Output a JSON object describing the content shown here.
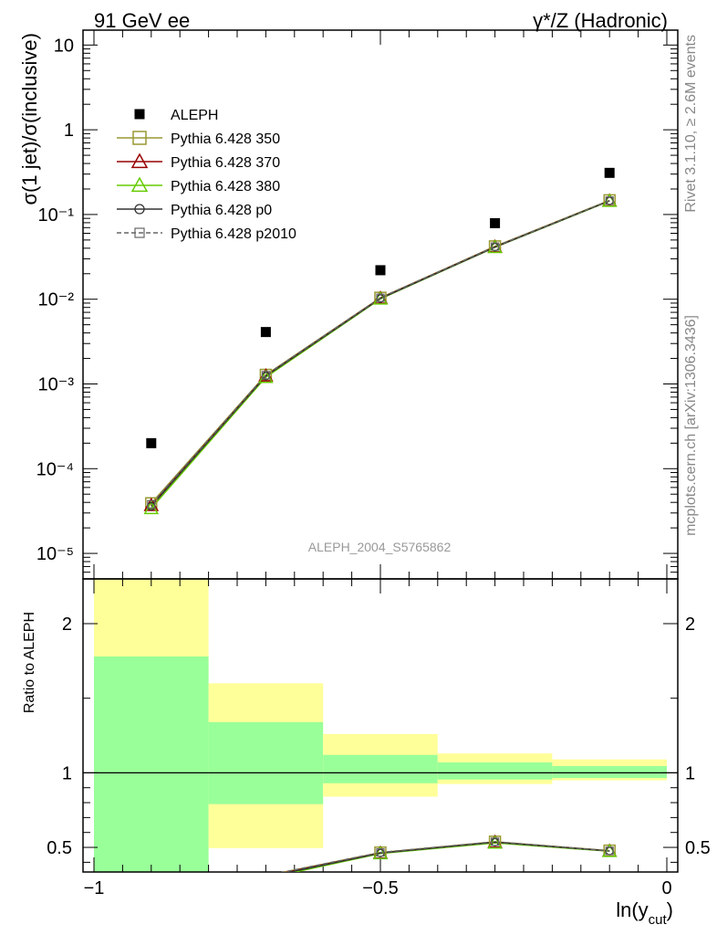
{
  "header": {
    "left_title": "91 GeV ee",
    "right_title": "γ*/Z (Hadronic)"
  },
  "side_text": {
    "rivet": "Rivet 3.1.10, ≥ 2.6M events",
    "mcplots": "mcplots.cern.ch [arXiv:1306.3436]"
  },
  "analysis_label": "ALEPH_2004_S5765862",
  "colors": {
    "data": "#000000",
    "p350": "#999933",
    "p370": "#990000",
    "p380": "#66cc00",
    "p0": "#333333",
    "p2010": "#666666",
    "band_inner": "#99ff99",
    "band_outer": "#ffff99"
  },
  "chart_data": [
    {
      "type": "scatter",
      "panel": "main",
      "ylabel": "σ(1 jet)/σ(inclusive)",
      "xlim": [
        -1,
        0
      ],
      "ylim": [
        5e-06,
        15
      ],
      "yscale": "log",
      "ytick_labels": [
        "10",
        "1",
        "10⁻¹",
        "10⁻²",
        "10⁻³",
        "10⁻⁴",
        "10⁻⁵"
      ],
      "legend_position": "top-left",
      "x": [
        -0.9,
        -0.7,
        -0.5,
        -0.3,
        -0.1
      ],
      "series": [
        {
          "name": "ALEPH",
          "style": "data",
          "values": [
            0.0002,
            0.0041,
            0.022,
            0.079,
            0.31
          ]
        },
        {
          "name": "Pythia 6.428 350",
          "style": "p350",
          "values": [
            3.9e-05,
            0.00128,
            0.0104,
            0.042,
            0.147
          ]
        },
        {
          "name": "Pythia 6.428 370",
          "style": "p370",
          "values": [
            3.7e-05,
            0.00125,
            0.0103,
            0.0415,
            0.145
          ]
        },
        {
          "name": "Pythia 6.428 380",
          "style": "p380",
          "values": [
            3.4e-05,
            0.0012,
            0.0101,
            0.041,
            0.144
          ]
        },
        {
          "name": "Pythia 6.428 p0",
          "style": "p0",
          "values": [
            3.6e-05,
            0.00124,
            0.0102,
            0.0412,
            0.145
          ]
        },
        {
          "name": "Pythia 6.428 p2010",
          "style": "p2010",
          "values": [
            3.8e-05,
            0.00127,
            0.0104,
            0.0418,
            0.146
          ]
        }
      ]
    },
    {
      "type": "line",
      "panel": "ratio",
      "ylabel": "Ratio to ALEPH",
      "xlabel": "ln(y",
      "xlabel_sub": "cut",
      "xlabel_end": ")",
      "xlim": [
        -1,
        0
      ],
      "ylim": [
        0.335,
        2.3
      ],
      "xtick_labels": [
        "−1",
        "−0.5",
        "0"
      ],
      "ytick_labels": [
        "0.5",
        "1",
        "2"
      ],
      "bins": [
        {
          "x0": -1.0,
          "x1": -0.8,
          "inner": [
            0.335,
            1.78
          ],
          "outer": [
            0.335,
            2.3
          ]
        },
        {
          "x0": -0.8,
          "x1": -0.6,
          "inner": [
            0.79,
            1.34
          ],
          "outer": [
            0.495,
            1.6
          ]
        },
        {
          "x0": -0.6,
          "x1": -0.4,
          "inner": [
            0.93,
            1.12
          ],
          "outer": [
            0.84,
            1.26
          ]
        },
        {
          "x0": -0.4,
          "x1": -0.2,
          "inner": [
            0.955,
            1.07
          ],
          "outer": [
            0.925,
            1.13
          ]
        },
        {
          "x0": -0.2,
          "x1": 0.0,
          "inner": [
            0.965,
            1.045
          ],
          "outer": [
            0.95,
            1.09
          ]
        }
      ],
      "x": [
        -0.7,
        -0.5,
        -0.3,
        -0.1
      ],
      "series": [
        {
          "name": "Pythia 6.428 350",
          "style": "p350",
          "values": [
            0.31,
            0.465,
            0.538,
            0.478
          ]
        },
        {
          "name": "Pythia 6.428 370",
          "style": "p370",
          "values": [
            0.305,
            0.462,
            0.535,
            0.476
          ]
        },
        {
          "name": "Pythia 6.428 380",
          "style": "p380",
          "values": [
            0.292,
            0.459,
            0.53,
            0.474
          ]
        },
        {
          "name": "Pythia 6.428 p0",
          "style": "p0",
          "values": [
            0.3,
            0.462,
            0.535,
            0.476
          ]
        },
        {
          "name": "Pythia 6.428 p2010",
          "style": "p2010",
          "values": [
            0.31,
            0.466,
            0.538,
            0.477
          ]
        }
      ]
    }
  ]
}
